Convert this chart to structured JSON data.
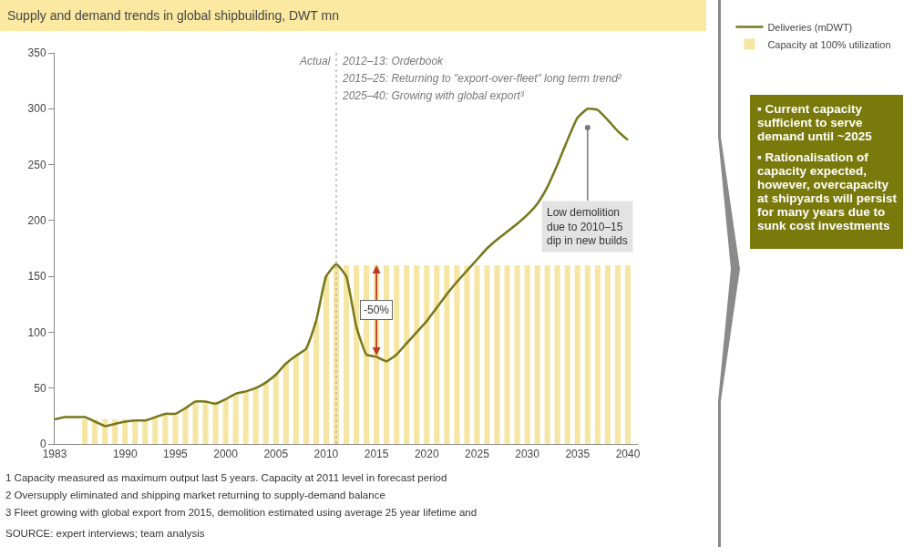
{
  "chart_data": {
    "type": "line",
    "title": "Supply and demand trends in global shipbuilding, DWT mn",
    "series": [
      {
        "name": "Deliveries (mDWT)",
        "color": "#76761a",
        "x": [
          1983,
          1984,
          1985,
          1986,
          1987,
          1988,
          1989,
          1990,
          1991,
          1992,
          1993,
          1994,
          1995,
          1996,
          1997,
          1998,
          1999,
          2000,
          2001,
          2002,
          2003,
          2004,
          2005,
          2006,
          2007,
          2008,
          2009,
          2010,
          2011,
          2012,
          2013,
          2014,
          2015,
          2016,
          2017,
          2018,
          2019,
          2020,
          2021,
          2022,
          2023,
          2024,
          2025,
          2026,
          2027,
          2028,
          2029,
          2030,
          2031,
          2032,
          2033,
          2034,
          2035,
          2036,
          2037,
          2038,
          2039,
          2040
        ],
        "values": [
          22,
          24,
          24,
          24,
          20,
          16,
          18,
          20,
          21,
          21,
          24,
          27,
          27,
          32,
          38,
          38,
          36,
          40,
          45,
          47,
          50,
          55,
          62,
          72,
          79,
          85,
          110,
          150,
          161,
          150,
          105,
          80,
          78,
          74,
          80,
          90,
          100,
          110,
          122,
          134,
          145,
          155,
          165,
          175,
          183,
          190,
          197,
          205,
          215,
          230,
          250,
          272,
          292,
          300,
          299,
          290,
          280,
          272
        ]
      },
      {
        "name": "Capacity at 100% utilization",
        "type": "bar",
        "color": "#f6e6a4",
        "x": [
          1986,
          1987,
          1988,
          1989,
          1990,
          1991,
          1992,
          1993,
          1994,
          1995,
          1996,
          1997,
          1998,
          1999,
          2000,
          2001,
          2002,
          2003,
          2004,
          2005,
          2006,
          2007,
          2008,
          2009,
          2010,
          2011,
          2012,
          2013,
          2014,
          2015,
          2016,
          2017,
          2018,
          2019,
          2020,
          2021,
          2022,
          2023,
          2024,
          2025,
          2026,
          2027,
          2028,
          2029,
          2030,
          2031,
          2032,
          2033,
          2034,
          2035,
          2036,
          2037,
          2038,
          2039,
          2040
        ],
        "values": [
          22,
          22,
          22,
          22,
          22,
          22,
          22,
          24,
          27,
          27,
          32,
          38,
          38,
          38,
          40,
          45,
          47,
          50,
          55,
          62,
          72,
          79,
          85,
          110,
          150,
          160,
          160,
          160,
          160,
          160,
          160,
          160,
          160,
          160,
          160,
          160,
          160,
          160,
          160,
          160,
          160,
          160,
          160,
          160,
          160,
          160,
          160,
          160,
          160,
          160,
          160,
          160,
          160,
          160,
          160
        ]
      }
    ],
    "xlim": [
      1983,
      2041
    ],
    "xticks": [
      1983,
      1990,
      1995,
      2000,
      2005,
      2010,
      2015,
      2020,
      2025,
      2030,
      2035,
      2040
    ],
    "ylim": [
      0,
      350
    ],
    "yticks": [
      0,
      50,
      100,
      150,
      200,
      250,
      300,
      350
    ],
    "grid": false,
    "legend": "top right",
    "marker": "none",
    "line_style": "solid",
    "ref_lines": [
      {
        "axis": "x",
        "value": 2011,
        "color": "#aaaaaa",
        "line_style": "dotted"
      }
    ],
    "annotations": [
      "Actual",
      "2012–13: Orderbook",
      "2015–25: Returning to \"export-over-fleet\" long term trend²",
      "2025–40: Growing with global export³",
      {
        "text": "-50%",
        "x": 2015,
        "y": 120
      },
      {
        "text": "Low demolition due to 2010–15 dip in new builds",
        "x": 2036,
        "y": 283
      },
      "▪ Current capacity sufficient to serve demand until ~2025",
      "▪ Rationalisation of capacity expected, however, overcapacity at shipyards will persist for many years due to sunk cost investments",
      "1 Capacity measured as maximum output last 5 years. Capacity at 2011 level in forecast period",
      "2 Oversupply eliminated and shipping market returning to supply-demand balance",
      "3 Fleet growing with global export from 2015, demolition estimated using average 25 year lifetime and",
      "SOURCE: expert interviews; team analysis"
    ]
  }
}
